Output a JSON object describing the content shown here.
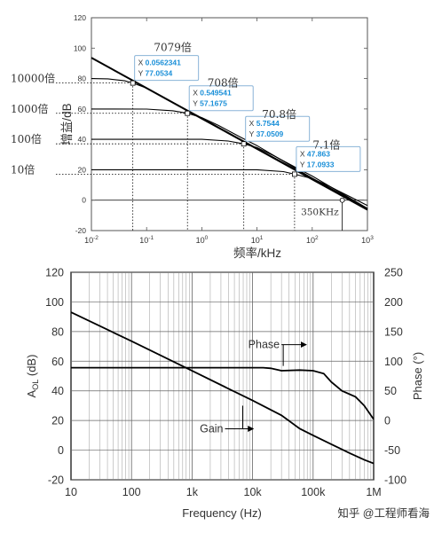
{
  "colors": {
    "accent": "#1a8fd8",
    "curve": "#000000",
    "grid": "#bbbbbb",
    "axis": "#555555"
  },
  "chart_data": [
    {
      "type": "line",
      "xscale": "log",
      "xlim": [
        0.01,
        1000
      ],
      "ylim": [
        -20,
        120
      ],
      "xlabel": "频率/kHz",
      "ylabel": "增益/dB",
      "x_ticks": [
        0.01,
        0.1,
        1,
        10,
        100,
        1000
      ],
      "x_tick_labels": [
        {
          "base": "10",
          "exp": "-2"
        },
        {
          "base": "10",
          "exp": "-1"
        },
        {
          "base": "10",
          "exp": "0"
        },
        {
          "base": "10",
          "exp": "1"
        },
        {
          "base": "10",
          "exp": "2"
        },
        {
          "base": "10",
          "exp": "3"
        }
      ],
      "y_ticks": [
        -20,
        0,
        20,
        40,
        60,
        80,
        100,
        120
      ],
      "series": [
        {
          "x": [
            0.01,
            0.1,
            1,
            10,
            100,
            350,
            1000
          ],
          "y": [
            93.7,
            73.7,
            53.7,
            33.7,
            13.7,
            2.8,
            -6.3
          ]
        },
        {
          "x": [
            0.01,
            0.02,
            0.04,
            0.0562,
            0.1,
            0.2,
            0.5,
            1,
            10,
            100,
            1000
          ],
          "y": [
            80.0,
            79.8,
            78.5,
            77.05,
            73.7,
            67.9,
            59.9,
            54.1,
            34.0,
            14.4,
            -5.5
          ]
        },
        {
          "x": [
            0.01,
            0.1,
            0.3,
            0.5495,
            1,
            2,
            5,
            10,
            100,
            1000
          ],
          "y": [
            60.0,
            59.9,
            58.8,
            57.17,
            54.3,
            49.2,
            41.5,
            35.9,
            14.5,
            -5.6
          ]
        },
        {
          "x": [
            0.01,
            1,
            3,
            5.7544,
            10,
            20,
            50,
            100,
            1000
          ],
          "y": [
            40.0,
            40.0,
            38.9,
            37.05,
            34.6,
            29.3,
            21.6,
            15.9,
            -5.4
          ]
        },
        {
          "x": [
            0.01,
            10,
            30,
            47.863,
            100,
            200,
            500,
            1000
          ],
          "y": [
            20.0,
            20.0,
            18.8,
            17.09,
            14.2,
            9.3,
            2.0,
            -3.5
          ]
        }
      ],
      "datatips": [
        {
          "x": 0.0562341,
          "y": 77.0534,
          "x_text": "0.0562341",
          "y_text": "77.0534"
        },
        {
          "x": 0.549541,
          "y": 57.1675,
          "x_text": "0.549541",
          "y_text": "57.1675"
        },
        {
          "x": 5.7544,
          "y": 37.0509,
          "x_text": "5.7544",
          "y_text": "37.0509"
        },
        {
          "x": 47.863,
          "y": 17.0933,
          "x_text": "47.863",
          "y_text": "17.0933"
        }
      ],
      "datatip_x_label": "X",
      "datatip_y_label": "Y",
      "annotations": [
        {
          "text": "7079倍",
          "x": 0.0562341,
          "y": 77.0534
        },
        {
          "text": "708倍",
          "x": 0.549541,
          "y": 57.1675
        },
        {
          "text": "70.8倍",
          "x": 5.7544,
          "y": 37.0509
        },
        {
          "text": "7.1倍",
          "x": 47.863,
          "y": 17.0933
        },
        {
          "text": "350KHz",
          "x": 350,
          "y": 0
        }
      ],
      "left_labels": [
        {
          "text": "10000倍",
          "y": 80
        },
        {
          "text": "1000倍",
          "y": 60
        },
        {
          "text": "100倍",
          "y": 40
        },
        {
          "text": "10倍",
          "y": 20
        }
      ]
    },
    {
      "type": "line",
      "xscale": "log",
      "xlim": [
        10,
        1000000
      ],
      "ylim": [
        -20,
        120
      ],
      "y2lim": [
        -100,
        250
      ],
      "xlabel": "Frequency (Hz)",
      "ylabel": "A",
      "ylabel_sub": "OL",
      "ylabel_unit": " (dB)",
      "y2label": "Phase (°)",
      "x_ticks": [
        10,
        100,
        1000,
        10000,
        100000,
        1000000
      ],
      "x_tick_labels": [
        "10",
        "100",
        "1k",
        "10k",
        "100k",
        "1M"
      ],
      "y_ticks": [
        -20,
        0,
        20,
        40,
        60,
        80,
        100,
        120
      ],
      "y2_ticks": [
        -100,
        -50,
        0,
        50,
        100,
        150,
        200,
        250
      ],
      "series": [
        {
          "name": "Gain",
          "axis": "left",
          "x": [
            10,
            100,
            1000,
            10000,
            30000,
            60000,
            100000,
            200000,
            400000,
            700000,
            1000000
          ],
          "y": [
            93,
            73.5,
            53.5,
            33.5,
            23.5,
            14.5,
            10,
            4,
            -2,
            -6.5,
            -9
          ]
        },
        {
          "name": "Phase",
          "axis": "right",
          "x": [
            10,
            100,
            1000,
            10000,
            15000,
            20000,
            30000,
            60000,
            100000,
            150000,
            200000,
            300000,
            500000,
            700000,
            1000000
          ],
          "y": [
            89,
            89,
            89,
            89,
            89,
            88,
            84,
            85,
            84,
            79,
            65,
            50,
            40,
            25,
            2
          ]
        }
      ],
      "annotations": [
        {
          "text": "Phase",
          "x": 30000,
          "y2": 122
        },
        {
          "text": "Gain",
          "x": 3500,
          "y": 12
        }
      ]
    }
  ],
  "watermark": "知乎 @工程师看海"
}
